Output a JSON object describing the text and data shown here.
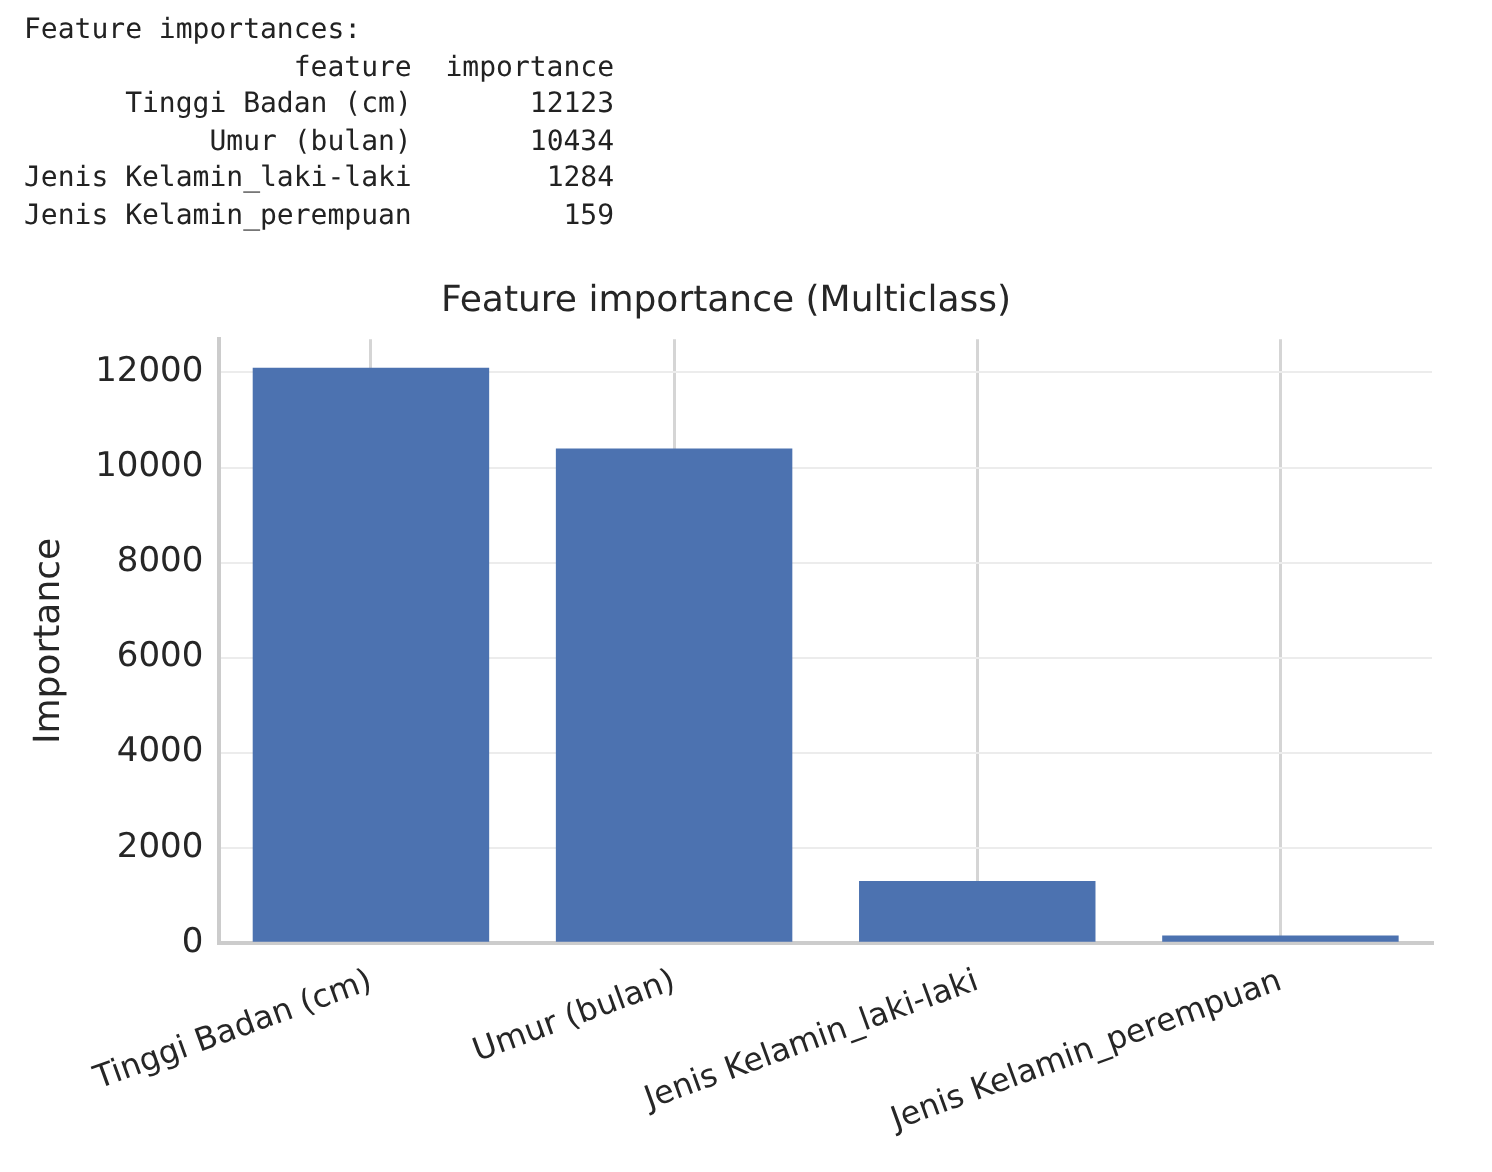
{
  "chart_data": [
    {
      "type": "other",
      "title": "Feature importances:",
      "xlabel": "feature",
      "ylabel": "importance",
      "categories": [
        "Tinggi Badan (cm)",
        "Umur (bulan)",
        "Jenis Kelamin_laki-laki",
        "Jenis Kelamin_perempuan"
      ],
      "values": [
        12123,
        10434,
        1284,
        159
      ],
      "data_labels": true
    },
    {
      "type": "bar",
      "title": "Feature importance (Multiclass)",
      "ylabel": "Importance",
      "categories": [
        "Tinggi Badan (cm)",
        "Umur (bulan)",
        "Jenis Kelamin_laki-laki",
        "Jenis Kelamin_perempuan"
      ],
      "values": [
        12100,
        10400,
        1300,
        150
      ],
      "color": "#4c72b0",
      "ylim": [
        0,
        12700
      ],
      "yticks": [
        0,
        2000,
        4000,
        6000,
        8000,
        10000,
        12000
      ],
      "grid": true
    }
  ]
}
